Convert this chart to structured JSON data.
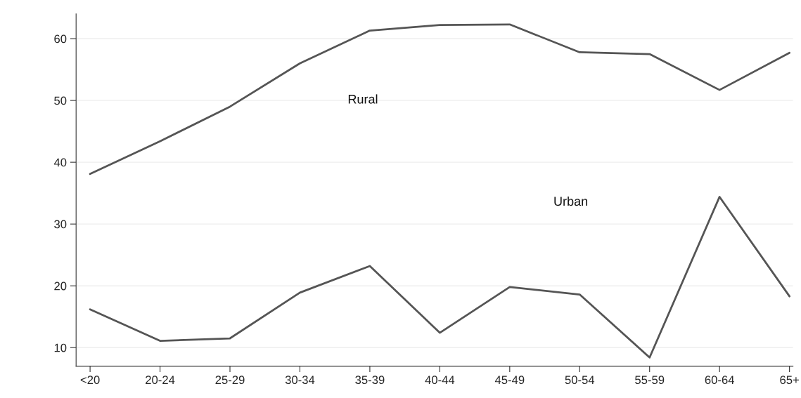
{
  "chart_data": {
    "type": "line",
    "categories": [
      "<20",
      "20-24",
      "25-29",
      "30-34",
      "35-39",
      "40-44",
      "45-49",
      "50-54",
      "55-59",
      "60-64",
      "65+"
    ],
    "series": [
      {
        "color": "#555555",
        "values": [
          38.1,
          43.4,
          49.0,
          56.0,
          61.3,
          62.2,
          62.3,
          57.8,
          57.5,
          51.7,
          57.7
        ]
      },
      {
        "color": "#555555",
        "values": [
          16.2,
          11.1,
          11.5,
          18.9,
          23.2,
          12.4,
          19.8,
          18.6,
          8.4,
          34.4,
          18.3
        ]
      }
    ],
    "annotations": [
      "Rural",
      "Urban"
    ],
    "ylim": [
      7,
      64
    ],
    "yticks": [
      10,
      20,
      30,
      40,
      50,
      60
    ],
    "grid": "y",
    "marker": "none",
    "line_style": "solid",
    "legend": false
  }
}
